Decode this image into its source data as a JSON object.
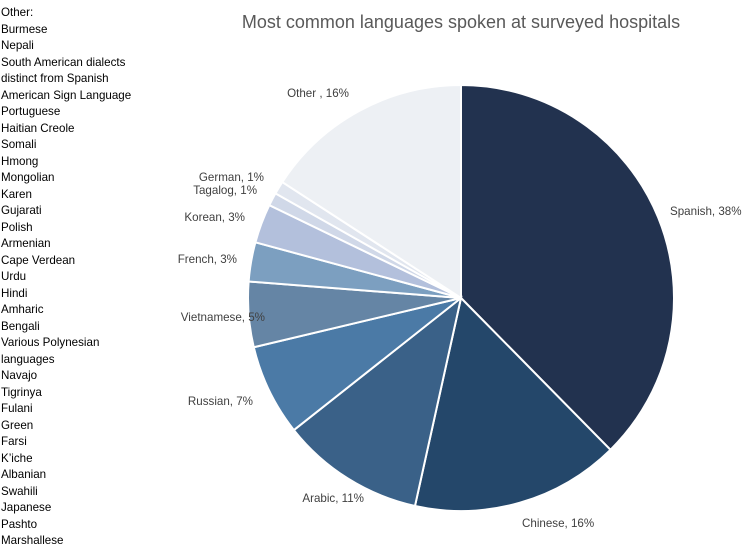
{
  "chart_data": {
    "type": "pie",
    "title": "Most common languages spoken at surveyed hospitals",
    "categories": [
      "Spanish",
      "Chinese",
      "Arabic",
      "Russian",
      "Vietnamese",
      "French",
      "Korean",
      "Tagalog",
      "German",
      "Other"
    ],
    "values": [
      38,
      16,
      11,
      7,
      5,
      3,
      3,
      1,
      1,
      16
    ],
    "data_labels": [
      "Spanish, 38%",
      "Chinese, 16%",
      "Arabic, 11%",
      "Russian, 7%",
      "Vietnamese, 5%",
      "French, 3%",
      "Korean, 3%",
      "Tagalog, 1%",
      "German, 1%",
      "Other , 16%"
    ],
    "colors": [
      "#22324f",
      "#24476a",
      "#3a6188",
      "#4b7aa6",
      "#6585a5",
      "#7c9fc0",
      "#b3c0dc",
      "#d0d8e8",
      "#e1e6ef",
      "#edf0f4"
    ],
    "start_angle_deg": 0,
    "direction": "clockwise"
  },
  "other_note": {
    "heading": "Other:",
    "items": [
      "Burmese",
      "Nepali",
      "South American dialects",
      "distinct from Spanish",
      "American Sign Language",
      "Portuguese",
      "Haitian Creole",
      "Somali",
      "Hmong",
      "Mongolian",
      "Karen",
      "Gujarati",
      "Polish",
      "Armenian",
      "Cape Verdean",
      "Urdu",
      "Hindi",
      "Amharic",
      "Bengali",
      "Various Polynesian",
      "languages",
      "Navajo",
      "Tigrinya",
      "Fulani",
      "Green",
      "Farsi",
      "K’iche",
      "Albanian",
      "Swahili",
      "Japanese",
      "Pashto",
      "Marshallese"
    ]
  }
}
